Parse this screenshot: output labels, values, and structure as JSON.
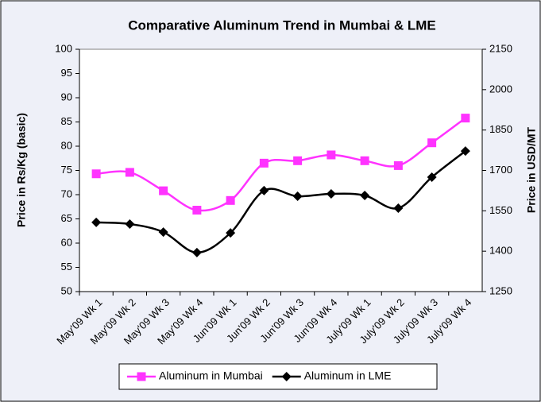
{
  "chart_data": {
    "type": "line",
    "title": "Comparative Aluminum Trend in Mumbai & LME",
    "y_label": "Price in Rs/Kg (basic)",
    "y2_label": "Price in USD/MT",
    "categories": [
      "May'09 Wk 1",
      "May'09 Wk 2",
      "May'09 Wk 3",
      "May'09 Wk 4",
      "Jun'09 Wk 1",
      "Jun'09 Wk 2",
      "Jun'09 Wk 3",
      "Jun'09 Wk 4",
      "July'09 Wk 1",
      "July'09 Wk 2",
      "July'09 Wk 3",
      "July'09 Wk 4"
    ],
    "series": [
      {
        "name": "Aluminum in Mumbai",
        "color": "#ff33ff",
        "marker": "square",
        "values": [
          74.3,
          74.6,
          70.8,
          66.8,
          68.8,
          76.5,
          77,
          78.2,
          77,
          76,
          80.7,
          85.8
        ]
      },
      {
        "name": "Aluminum in LME",
        "color": "#000000",
        "marker": "diamond",
        "axis": "y2",
        "values": [
          1507,
          1501,
          1471,
          1395,
          1468,
          1625,
          1604,
          1613,
          1607,
          1560,
          1675,
          1772
        ]
      }
    ],
    "ylim": [
      50,
      100
    ],
    "yticks": [
      50,
      55,
      60,
      65,
      70,
      75,
      80,
      85,
      90,
      95,
      100
    ],
    "y2lim": [
      1250,
      2150
    ],
    "y2ticks": [
      1250,
      1400,
      1550,
      1700,
      1850,
      2000,
      2150
    ],
    "legend": "bottom"
  }
}
